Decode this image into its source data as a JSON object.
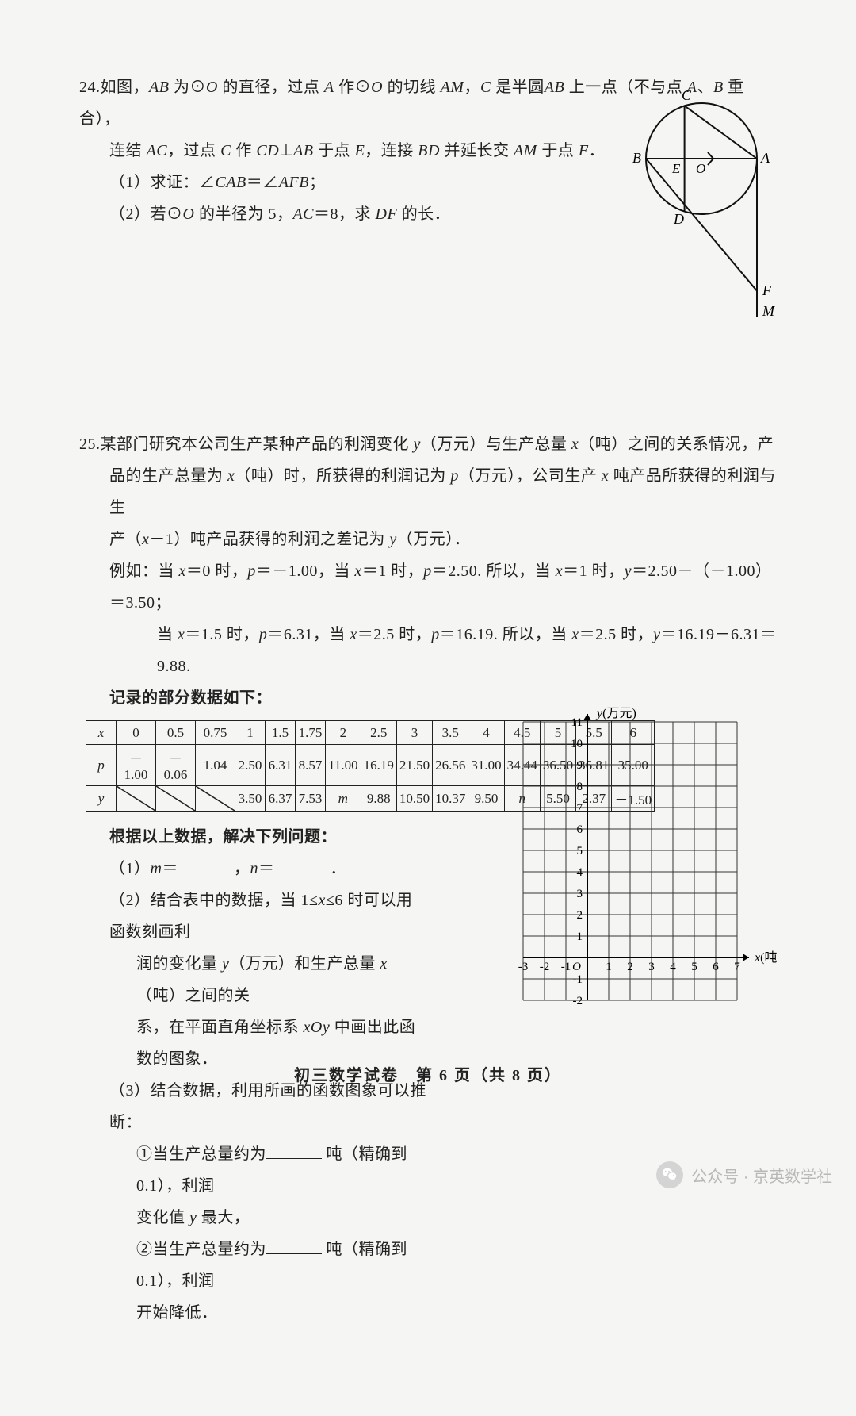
{
  "problem24": {
    "number": "24.",
    "line1_a": "如图，",
    "line1_b": "AB",
    "line1_c": " 为⊙",
    "line1_d": "O",
    "line1_e": " 的直径，过点 ",
    "line1_f": "A",
    "line1_g": " 作⊙",
    "line1_h": "O",
    "line1_i": " 的切线 ",
    "line1_j": "AM",
    "line1_k": "，",
    "line1_l": "C",
    "line1_m": " 是半圆",
    "line1_n": "AB",
    "line1_o": " 上一点（不与点 ",
    "line1_p": "A",
    "line1_q": "、",
    "line1_r": "B",
    "line1_s": " 重合），",
    "line2_a": "连结 ",
    "line2_b": "AC",
    "line2_c": "，过点 ",
    "line2_d": "C",
    "line2_e": " 作 ",
    "line2_f": "CD",
    "line2_g": "⊥",
    "line2_h": "AB",
    "line2_i": " 于点 ",
    "line2_j": "E",
    "line2_k": "，连接 ",
    "line2_l": "BD",
    "line2_m": " 并延长交 ",
    "line2_n": "AM",
    "line2_o": " 于点 ",
    "line2_p": "F",
    "line2_q": "．",
    "sub1": "（1）求证：∠",
    "sub1_b": "CAB",
    "sub1_c": "＝∠",
    "sub1_d": "AFB",
    "sub1_e": "；",
    "sub2": "（2）若⊙",
    "sub2_b": "O",
    "sub2_c": " 的半径为 5，",
    "sub2_d": "AC",
    "sub2_e": "＝8，求 ",
    "sub2_f": "DF",
    "sub2_g": " 的长．",
    "labels": {
      "A": "A",
      "B": "B",
      "C": "C",
      "D": "D",
      "E": "E",
      "F": "F",
      "M": "M",
      "O": "O"
    }
  },
  "problem25": {
    "number": "25.",
    "intro1": "某部门研究本公司生产某种产品的利润变化 ",
    "y": "y",
    "intro1b": "（万元）与生产总量 ",
    "x": "x",
    "intro1c": "（吨）之间的关系情况，产",
    "intro2": "品的生产总量为 ",
    "intro2b": "（吨）时，所获得的利润记为 ",
    "p": "p",
    "intro2c": "（万元），公司生产 ",
    "intro2d": " 吨产品所获得的利润与生",
    "intro3a": "产（",
    "intro3b": "－1）吨产品获得的利润之差记为 ",
    "intro3c": "（万元）．",
    "eg1": "例如：当 ",
    "eg1b": "＝0 时，",
    "eg1c": "＝－1.00，当 ",
    "eg1d": "＝1 时，",
    "eg1e": "＝2.50. 所以，当 ",
    "eg1f": "＝1 时，",
    "eg1g": "＝2.50－（－1.00）＝3.50；",
    "eg2a": "当 ",
    "eg2b": "＝1.5 时，",
    "eg2c": "＝6.31，当 ",
    "eg2d": "＝2.5 时，",
    "eg2e": "＝16.19. 所以，当 ",
    "eg2f": "＝2.5 时，",
    "eg2g": "＝16.19－6.31＝9.88.",
    "rec": "记录的部分数据如下：",
    "table": {
      "x_row": [
        "0",
        "0.5",
        "0.75",
        "1",
        "1.5",
        "1.75",
        "2",
        "2.5",
        "3",
        "3.5",
        "4",
        "4.5",
        "5",
        "5.5",
        "6"
      ],
      "p_row": [
        "－1.00",
        "－0.06",
        "1.04",
        "2.50",
        "6.31",
        "8.57",
        "11.00",
        "16.19",
        "21.50",
        "26.56",
        "31.00",
        "34.44",
        "36.50",
        "36.81",
        "35.00"
      ],
      "y_row": [
        "",
        "",
        "",
        "3.50",
        "6.37",
        "7.53",
        "m",
        "9.88",
        "10.50",
        "10.37",
        "9.50",
        "n",
        "5.50",
        "2.37",
        "－1.50"
      ]
    },
    "after": "根据以上数据，解决下列问题：",
    "q1a": "（1）",
    "q1b": "m",
    "q1c": "＝",
    "q1d": "，",
    "q1e": "n",
    "q1f": "＝",
    "q1g": "．",
    "q2a": "（2）结合表中的数据，当 1≤",
    "q2b": "≤6 时可以用函数刻画利",
    "q2c": "润的变化量 ",
    "q2d": "（万元）和生产总量 ",
    "q2e": "（吨）之间的关",
    "q2f": "系，在平面直角坐标系 ",
    "q2g": "xOy",
    "q2h": " 中画出此函数的图象．",
    "q3a": "（3）结合数据，利用所画的函数图象可以推断：",
    "q3_1a": "①当生产总量约为",
    "q3_1b": " 吨（精确到 0.1），利润",
    "q3_1c": "变化值 ",
    "q3_1d": " 最大，",
    "q3_2a": "②当生产总量约为",
    "q3_2b": " 吨（精确到 0.1），利润",
    "q3_2c": "开始降低．",
    "axis_y_label": "y（万元）",
    "axis_x_label": "x（吨）",
    "grid": {
      "x_min": -3,
      "x_max": 7,
      "y_min": -2,
      "y_max": 11,
      "x_ticks": [
        "-3",
        "-2",
        "-1",
        "O",
        "1",
        "2",
        "3",
        "4",
        "5",
        "6",
        "7"
      ],
      "y_ticks": [
        "-2",
        "-1",
        "1",
        "2",
        "3",
        "4",
        "5",
        "6",
        "7",
        "8",
        "9",
        "10",
        "11"
      ],
      "grid_color": "#333",
      "cell": 27
    }
  },
  "footer": "初三数学试卷　第 6 页（共 8 页）",
  "watermark": "公众号 · 京英数学社"
}
